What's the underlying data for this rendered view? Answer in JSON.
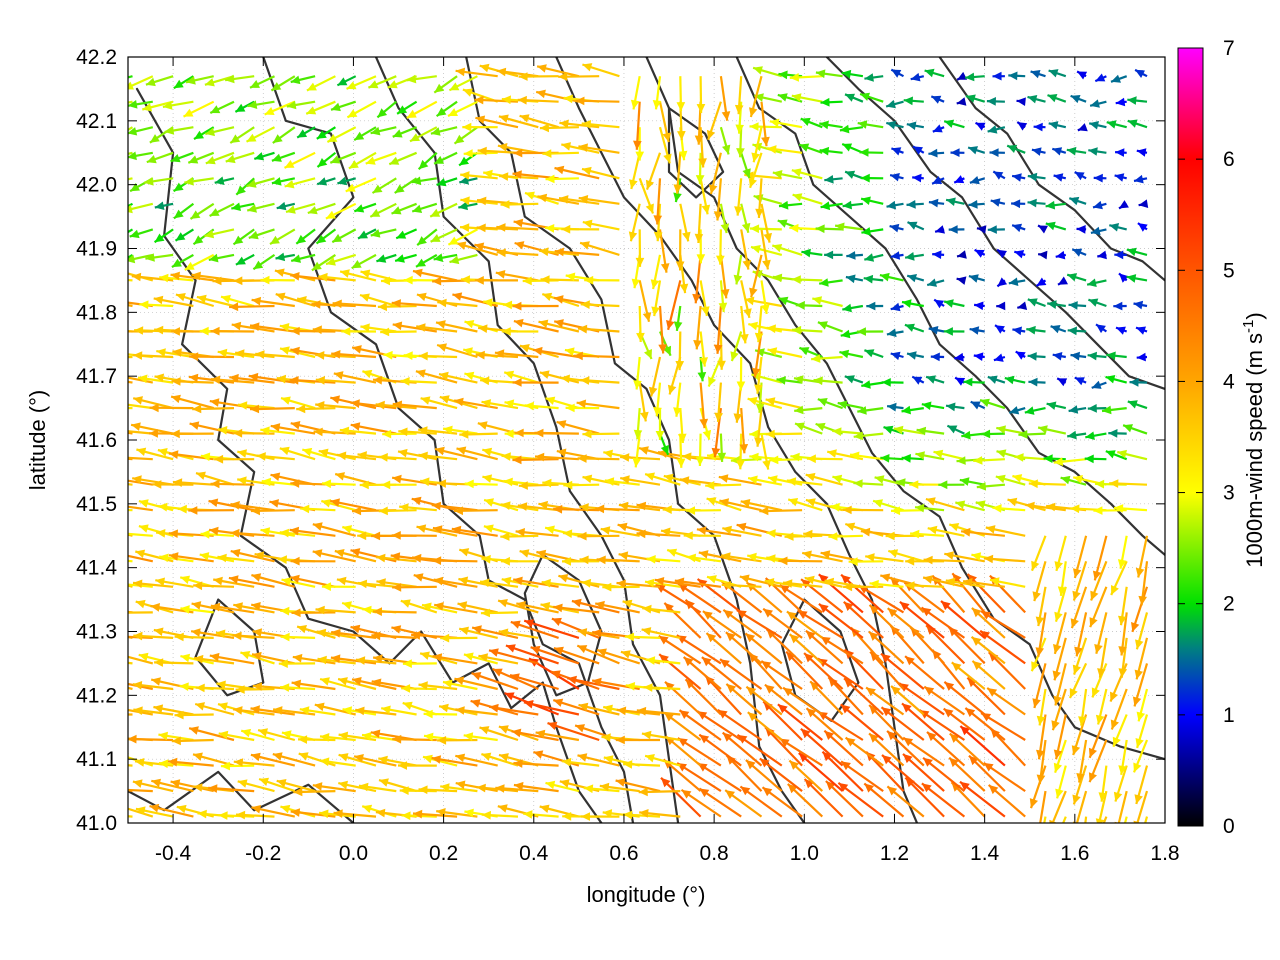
{
  "chart_data": {
    "type": "vector-field",
    "xlabel": "longitude (°)",
    "ylabel": "latitude (°)",
    "colorbar_label": "1000m-wind speed (m s",
    "colorbar_label_sup": "-1",
    "colorbar_label_end": ")",
    "xlim": [
      -0.5,
      1.8
    ],
    "ylim": [
      41.0,
      42.2
    ],
    "x_ticks": [
      "-0.4",
      "-0.2",
      "0.0",
      "0.2",
      "0.4",
      "0.6",
      "0.8",
      "1.0",
      "1.2",
      "1.4",
      "1.6",
      "1.8"
    ],
    "x_tick_values": [
      -0.4,
      -0.2,
      0.0,
      0.2,
      0.4,
      0.6,
      0.8,
      1.0,
      1.2,
      1.4,
      1.6,
      1.8
    ],
    "y_ticks": [
      "41.0",
      "41.1",
      "41.2",
      "41.3",
      "41.4",
      "41.5",
      "41.6",
      "41.7",
      "41.8",
      "41.9",
      "42.0",
      "42.1",
      "42.2"
    ],
    "y_tick_values": [
      41.0,
      41.1,
      41.2,
      41.3,
      41.4,
      41.5,
      41.6,
      41.7,
      41.8,
      41.9,
      42.0,
      42.1,
      42.2
    ],
    "colorbar_range": [
      0,
      7
    ],
    "colorbar_ticks": [
      "0",
      "1",
      "2",
      "3",
      "4",
      "5",
      "6",
      "7"
    ],
    "colorbar_tick_values": [
      0,
      1,
      2,
      3,
      4,
      5,
      6,
      7
    ],
    "colormap_stops": [
      {
        "v": 0,
        "color": "#000000"
      },
      {
        "v": 1,
        "color": "#0000ff"
      },
      {
        "v": 1.6,
        "color": "#008080"
      },
      {
        "v": 2,
        "color": "#00e000"
      },
      {
        "v": 3,
        "color": "#ffff00"
      },
      {
        "v": 4,
        "color": "#ffa500"
      },
      {
        "v": 5,
        "color": "#ff5500"
      },
      {
        "v": 6,
        "color": "#ff0000"
      },
      {
        "v": 7,
        "color": "#ff00ff"
      }
    ],
    "grid": true,
    "contours": [
      [
        [
          -0.5,
          41.05
        ],
        [
          -0.42,
          41.02
        ],
        [
          -0.3,
          41.08
        ],
        [
          -0.22,
          41.02
        ],
        [
          -0.1,
          41.06
        ],
        [
          0.0,
          41.0
        ]
      ],
      [
        [
          -0.48,
          42.15
        ],
        [
          -0.4,
          42.05
        ],
        [
          -0.42,
          41.92
        ],
        [
          -0.35,
          41.85
        ],
        [
          -0.38,
          41.75
        ],
        [
          -0.28,
          41.68
        ],
        [
          -0.3,
          41.6
        ],
        [
          -0.22,
          41.55
        ],
        [
          -0.25,
          41.45
        ],
        [
          -0.15,
          41.4
        ],
        [
          -0.1,
          41.32
        ],
        [
          0.0,
          41.3
        ],
        [
          0.08,
          41.25
        ],
        [
          0.15,
          41.3
        ],
        [
          0.22,
          41.22
        ],
        [
          0.3,
          41.25
        ],
        [
          0.35,
          41.18
        ],
        [
          0.42,
          41.22
        ],
        [
          0.45,
          41.15
        ],
        [
          0.5,
          41.05
        ],
        [
          0.55,
          41.0
        ]
      ],
      [
        [
          -0.2,
          42.2
        ],
        [
          -0.15,
          42.1
        ],
        [
          -0.05,
          42.08
        ],
        [
          0.0,
          41.98
        ],
        [
          -0.1,
          41.9
        ],
        [
          -0.05,
          41.8
        ],
        [
          0.05,
          41.75
        ],
        [
          0.1,
          41.65
        ],
        [
          0.18,
          41.6
        ],
        [
          0.2,
          41.5
        ],
        [
          0.28,
          41.45
        ],
        [
          0.3,
          41.38
        ],
        [
          0.38,
          41.35
        ],
        [
          0.42,
          41.28
        ],
        [
          0.5,
          41.25
        ],
        [
          0.55,
          41.15
        ],
        [
          0.6,
          41.08
        ],
        [
          0.62,
          41.0
        ]
      ],
      [
        [
          0.05,
          42.2
        ],
        [
          0.1,
          42.12
        ],
        [
          0.18,
          42.05
        ],
        [
          0.2,
          41.95
        ],
        [
          0.3,
          41.88
        ],
        [
          0.32,
          41.78
        ],
        [
          0.4,
          41.72
        ],
        [
          0.45,
          41.62
        ],
        [
          0.48,
          41.52
        ],
        [
          0.55,
          41.45
        ],
        [
          0.6,
          41.38
        ],
        [
          0.62,
          41.28
        ],
        [
          0.68,
          41.2
        ],
        [
          0.7,
          41.1
        ],
        [
          0.72,
          41.0
        ]
      ],
      [
        [
          0.25,
          42.2
        ],
        [
          0.28,
          42.1
        ],
        [
          0.35,
          42.05
        ],
        [
          0.38,
          41.95
        ],
        [
          0.48,
          41.9
        ],
        [
          0.55,
          41.82
        ],
        [
          0.58,
          41.72
        ],
        [
          0.65,
          41.68
        ],
        [
          0.7,
          41.6
        ],
        [
          0.72,
          41.5
        ],
        [
          0.8,
          41.45
        ],
        [
          0.85,
          41.35
        ],
        [
          0.88,
          41.25
        ],
        [
          0.9,
          41.12
        ],
        [
          0.95,
          41.05
        ],
        [
          1.0,
          41.0
        ]
      ],
      [
        [
          0.45,
          42.2
        ],
        [
          0.5,
          42.12
        ],
        [
          0.55,
          42.05
        ],
        [
          0.6,
          41.98
        ],
        [
          0.68,
          41.92
        ],
        [
          0.75,
          41.85
        ],
        [
          0.8,
          41.78
        ],
        [
          0.88,
          41.72
        ],
        [
          0.92,
          41.62
        ],
        [
          0.98,
          41.55
        ],
        [
          1.05,
          41.5
        ],
        [
          1.1,
          41.42
        ],
        [
          1.15,
          41.35
        ],
        [
          1.18,
          41.25
        ],
        [
          1.2,
          41.15
        ],
        [
          1.22,
          41.05
        ],
        [
          1.25,
          41.0
        ]
      ],
      [
        [
          0.65,
          42.2
        ],
        [
          0.7,
          42.12
        ],
        [
          0.72,
          42.02
        ],
        [
          0.8,
          41.98
        ],
        [
          0.85,
          41.9
        ],
        [
          0.92,
          41.85
        ],
        [
          0.98,
          41.78
        ],
        [
          1.05,
          41.72
        ],
        [
          1.1,
          41.65
        ],
        [
          1.15,
          41.58
        ],
        [
          1.22,
          41.52
        ],
        [
          1.3,
          41.48
        ],
        [
          1.35,
          41.4
        ],
        [
          1.42,
          41.32
        ],
        [
          1.5,
          41.28
        ],
        [
          1.55,
          41.2
        ],
        [
          1.6,
          41.15
        ],
        [
          1.7,
          41.12
        ],
        [
          1.8,
          41.1
        ]
      ],
      [
        [
          0.85,
          42.2
        ],
        [
          0.9,
          42.12
        ],
        [
          0.98,
          42.08
        ],
        [
          1.02,
          42.0
        ],
        [
          1.1,
          41.95
        ],
        [
          1.18,
          41.9
        ],
        [
          1.25,
          41.82
        ],
        [
          1.3,
          41.75
        ],
        [
          1.38,
          41.7
        ],
        [
          1.45,
          41.65
        ],
        [
          1.52,
          41.58
        ],
        [
          1.6,
          41.55
        ],
        [
          1.68,
          41.5
        ],
        [
          1.75,
          41.45
        ],
        [
          1.8,
          41.42
        ]
      ],
      [
        [
          1.05,
          42.2
        ],
        [
          1.12,
          42.15
        ],
        [
          1.2,
          42.1
        ],
        [
          1.28,
          42.02
        ],
        [
          1.35,
          41.98
        ],
        [
          1.42,
          41.9
        ],
        [
          1.5,
          41.85
        ],
        [
          1.58,
          41.8
        ],
        [
          1.65,
          41.75
        ],
        [
          1.72,
          41.7
        ],
        [
          1.8,
          41.68
        ]
      ],
      [
        [
          1.3,
          42.2
        ],
        [
          1.38,
          42.12
        ],
        [
          1.45,
          42.08
        ],
        [
          1.52,
          42.0
        ],
        [
          1.6,
          41.96
        ],
        [
          1.68,
          41.9
        ],
        [
          1.75,
          41.88
        ],
        [
          1.8,
          41.85
        ]
      ],
      [
        [
          0.42,
          41.42
        ],
        [
          0.5,
          41.38
        ],
        [
          0.55,
          41.3
        ],
        [
          0.52,
          41.22
        ],
        [
          0.45,
          41.2
        ],
        [
          0.4,
          41.28
        ],
        [
          0.38,
          41.36
        ],
        [
          0.42,
          41.42
        ]
      ],
      [
        [
          1.0,
          41.35
        ],
        [
          1.08,
          41.3
        ],
        [
          1.12,
          41.22
        ],
        [
          1.06,
          41.16
        ],
        [
          0.98,
          41.2
        ],
        [
          0.95,
          41.28
        ],
        [
          1.0,
          41.35
        ]
      ],
      [
        [
          0.7,
          42.12
        ],
        [
          0.78,
          42.08
        ],
        [
          0.82,
          42.02
        ],
        [
          0.76,
          41.98
        ],
        [
          0.7,
          42.02
        ],
        [
          0.7,
          42.12
        ]
      ],
      [
        [
          -0.3,
          41.35
        ],
        [
          -0.22,
          41.3
        ],
        [
          -0.2,
          41.22
        ],
        [
          -0.28,
          41.2
        ],
        [
          -0.35,
          41.26
        ],
        [
          -0.3,
          41.35
        ]
      ]
    ]
  }
}
